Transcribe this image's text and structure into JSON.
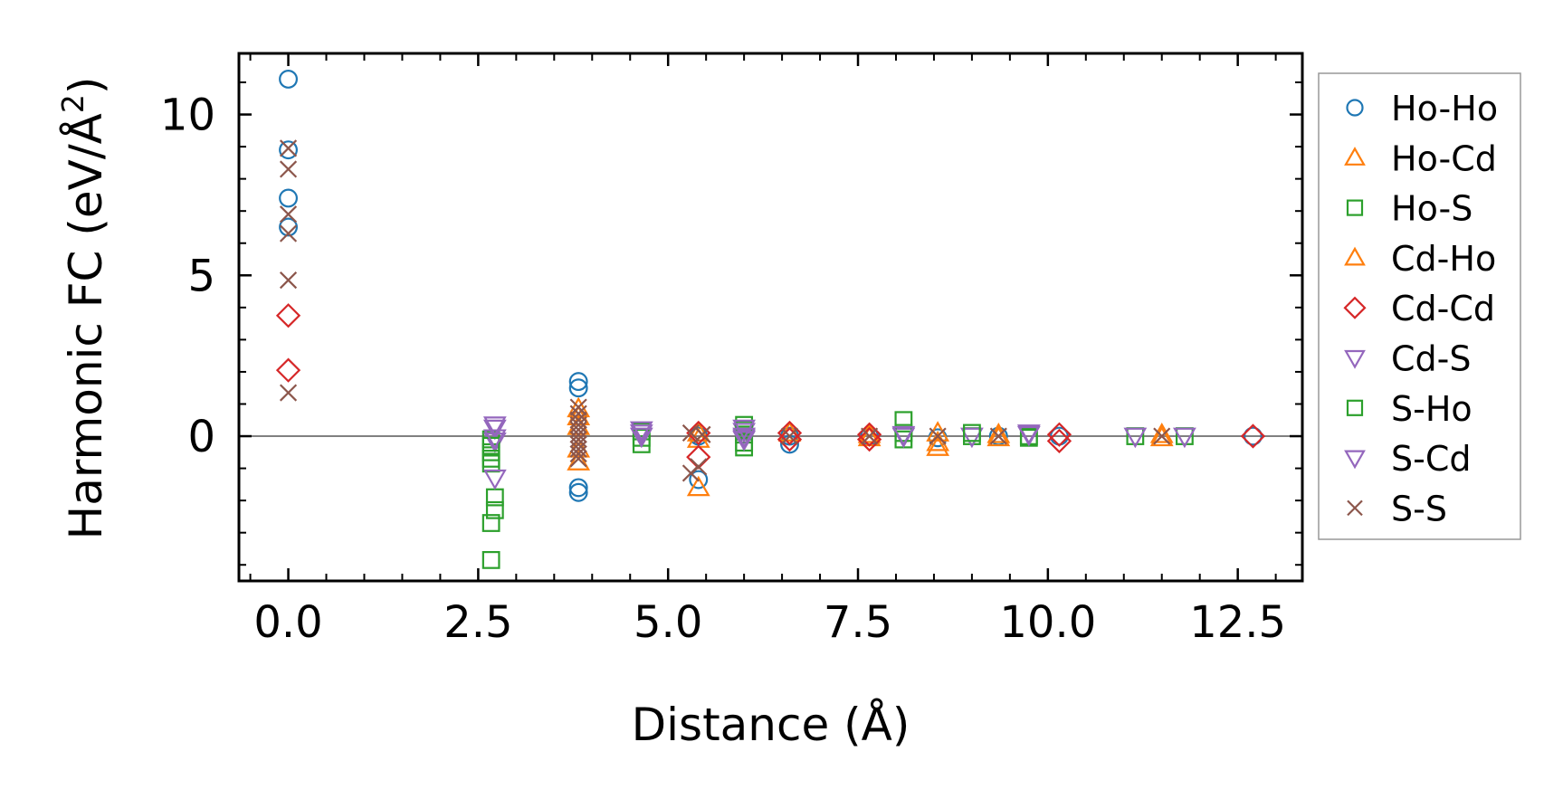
{
  "chart_data": {
    "type": "scatter",
    "title": "",
    "xlabel": "Distance (Å)",
    "ylabel": "Harmonic FC (eV/Å",
    "ylabel_sup": "2",
    "ylabel_end": ")",
    "xlim": [
      -0.65,
      13.35
    ],
    "ylim": [
      -4.5,
      11.9
    ],
    "xticks": [
      0.0,
      2.5,
      5.0,
      7.5,
      10.0,
      12.5
    ],
    "xtick_labels": [
      "0.0",
      "2.5",
      "5.0",
      "7.5",
      "10.0",
      "12.5"
    ],
    "yticks": [
      0,
      5,
      10
    ],
    "ytick_labels": [
      "0",
      "5",
      "10"
    ],
    "grid": false,
    "zero_line": true,
    "legend_position": "right",
    "series": [
      {
        "name": "Ho-Ho",
        "marker": "circle",
        "color": "#1f77b4",
        "points": [
          [
            0,
            11.1
          ],
          [
            0,
            8.9
          ],
          [
            0,
            7.4
          ],
          [
            0,
            6.5
          ],
          [
            3.82,
            1.7
          ],
          [
            3.82,
            1.5
          ],
          [
            3.82,
            -1.6
          ],
          [
            3.82,
            -1.75
          ],
          [
            5.4,
            -1.35
          ],
          [
            5.4,
            0.0
          ],
          [
            6.6,
            -0.25
          ],
          [
            6.6,
            0.0
          ],
          [
            7.65,
            0.0
          ],
          [
            8.55,
            -0.05
          ],
          [
            9.35,
            0.0
          ],
          [
            10.15,
            0.0
          ],
          [
            12.7,
            0.0
          ]
        ]
      },
      {
        "name": "Ho-Cd",
        "marker": "triangle-up",
        "color": "#ff7f0e",
        "points": [
          [
            3.82,
            0.85
          ],
          [
            3.82,
            0.6
          ],
          [
            3.82,
            -0.8
          ],
          [
            5.4,
            -1.6
          ],
          [
            5.4,
            0.1
          ],
          [
            6.6,
            0.1
          ],
          [
            7.65,
            0.05
          ],
          [
            8.55,
            -0.35
          ],
          [
            8.55,
            0.1
          ],
          [
            9.35,
            -0.05
          ],
          [
            11.5,
            -0.05
          ]
        ]
      },
      {
        "name": "Ho-S",
        "marker": "square",
        "color": "#2ca02c",
        "points": [
          [
            2.67,
            -0.1
          ],
          [
            2.67,
            -0.5
          ],
          [
            2.67,
            -0.85
          ],
          [
            2.67,
            -2.7
          ],
          [
            2.67,
            -3.85
          ],
          [
            2.72,
            -1.9
          ],
          [
            2.72,
            -2.3
          ],
          [
            4.65,
            0.15
          ],
          [
            4.65,
            -0.25
          ],
          [
            6.0,
            0.35
          ],
          [
            6.0,
            0.05
          ],
          [
            6.0,
            -0.35
          ],
          [
            8.1,
            0.5
          ],
          [
            8.1,
            -0.1
          ],
          [
            9.0,
            0.0
          ],
          [
            9.75,
            0.0
          ],
          [
            11.15,
            0.0
          ],
          [
            11.8,
            0.0
          ]
        ]
      },
      {
        "name": "Cd-Ho",
        "marker": "triangle-up",
        "color": "#ff7f0e",
        "points": [
          [
            3.82,
            0.3
          ],
          [
            3.82,
            -0.4
          ],
          [
            5.4,
            -0.1
          ],
          [
            7.65,
            -0.05
          ],
          [
            8.55,
            -0.2
          ],
          [
            9.35,
            0.05
          ],
          [
            11.5,
            0.05
          ]
        ]
      },
      {
        "name": "Cd-Cd",
        "marker": "diamond",
        "color": "#d62728",
        "points": [
          [
            0,
            3.75
          ],
          [
            0,
            2.05
          ],
          [
            5.4,
            -0.65
          ],
          [
            5.4,
            0.1
          ],
          [
            6.6,
            0.1
          ],
          [
            6.6,
            -0.1
          ],
          [
            7.65,
            -0.1
          ],
          [
            7.65,
            0.05
          ],
          [
            10.15,
            0.05
          ],
          [
            10.15,
            -0.15
          ],
          [
            12.7,
            0.0
          ]
        ]
      },
      {
        "name": "Cd-S",
        "marker": "triangle-down",
        "color": "#9467bd",
        "points": [
          [
            2.72,
            0.25
          ],
          [
            2.72,
            -0.15
          ],
          [
            4.65,
            0.1
          ],
          [
            6.0,
            0.15
          ],
          [
            6.0,
            -0.05
          ],
          [
            8.1,
            0.0
          ],
          [
            9.0,
            0.0
          ],
          [
            9.75,
            0.1
          ]
        ]
      },
      {
        "name": "S-Ho",
        "marker": "square",
        "color": "#2ca02c",
        "points": [
          [
            2.67,
            -0.3
          ],
          [
            2.67,
            -0.7
          ],
          [
            4.65,
            -0.05
          ],
          [
            6.0,
            0.2
          ],
          [
            6.0,
            -0.2
          ],
          [
            8.1,
            0.1
          ],
          [
            9.0,
            0.1
          ],
          [
            9.75,
            -0.05
          ]
        ]
      },
      {
        "name": "S-Cd",
        "marker": "triangle-down",
        "color": "#9467bd",
        "points": [
          [
            2.72,
            0.35
          ],
          [
            2.72,
            -1.3
          ],
          [
            2.72,
            -0.05
          ],
          [
            4.65,
            0.2
          ],
          [
            4.65,
            0.0
          ],
          [
            6.0,
            0.25
          ],
          [
            6.0,
            0.0
          ],
          [
            6.0,
            -0.1
          ],
          [
            8.1,
            0.05
          ],
          [
            9.75,
            0.05
          ],
          [
            11.15,
            0.0
          ],
          [
            11.8,
            0.0
          ]
        ]
      },
      {
        "name": "S-S",
        "marker": "x",
        "color": "#8c564b",
        "points": [
          [
            0,
            8.95
          ],
          [
            0,
            8.3
          ],
          [
            0,
            6.9
          ],
          [
            0,
            6.3
          ],
          [
            0,
            4.85
          ],
          [
            0,
            1.35
          ],
          [
            3.82,
            0.9
          ],
          [
            3.82,
            0.7
          ],
          [
            3.82,
            0.5
          ],
          [
            3.82,
            0.35
          ],
          [
            3.82,
            0.2
          ],
          [
            3.82,
            0.05
          ],
          [
            3.82,
            -0.1
          ],
          [
            3.82,
            -0.25
          ],
          [
            3.82,
            -0.4
          ],
          [
            3.82,
            -0.55
          ],
          [
            3.82,
            -0.7
          ],
          [
            5.3,
            0.1
          ],
          [
            5.3,
            -1.15
          ],
          [
            5.4,
            -0.95
          ],
          [
            5.45,
            0.05
          ],
          [
            6.6,
            0.0
          ],
          [
            7.65,
            0.0
          ],
          [
            8.55,
            0.0
          ],
          [
            9.35,
            0.0
          ],
          [
            11.5,
            0.0
          ]
        ]
      }
    ]
  }
}
